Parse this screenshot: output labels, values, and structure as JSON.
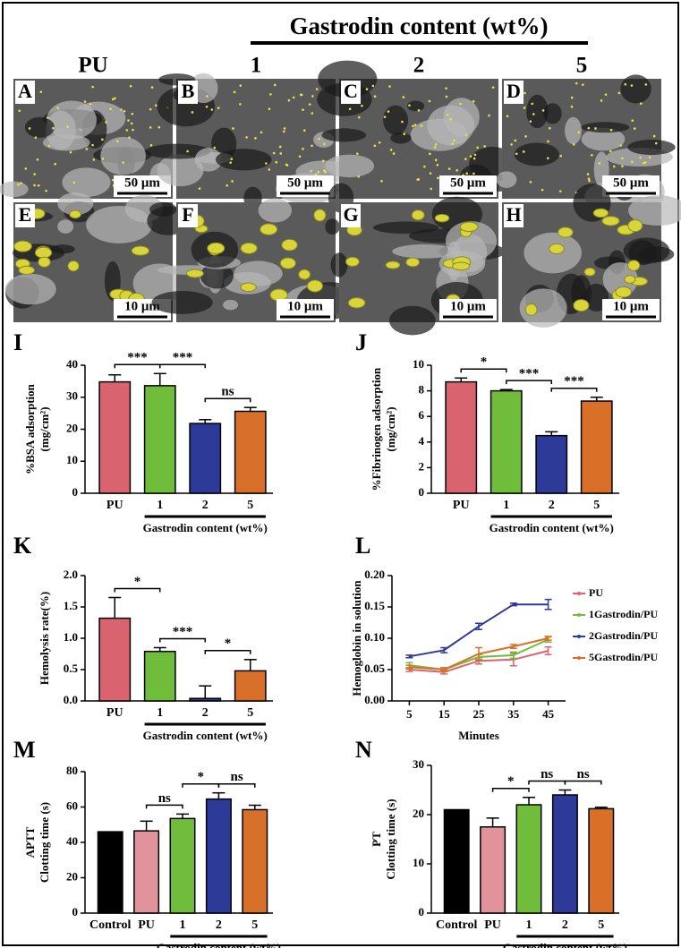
{
  "header": {
    "title": "Gastrodin content (wt%)",
    "columns": [
      "PU",
      "1",
      "2",
      "5"
    ]
  },
  "panels": [
    {
      "label": "A",
      "scale": "50 μm"
    },
    {
      "label": "B",
      "scale": "50 μm"
    },
    {
      "label": "C",
      "scale": "50 μm"
    },
    {
      "label": "D",
      "scale": "50 μm"
    },
    {
      "label": "E",
      "scale": "10 μm"
    },
    {
      "label": "F",
      "scale": "10 μm"
    },
    {
      "label": "G",
      "scale": "10 μm"
    },
    {
      "label": "H",
      "scale": "10 μm"
    }
  ],
  "chart_data": [
    {
      "type": "bar",
      "label": "I",
      "ylabel": [
        "%BSA adsorption",
        "(mg/cm²)"
      ],
      "group_label": "Gastrodin content (wt%)",
      "categories": [
        "PU",
        "1",
        "2",
        "5"
      ],
      "values": [
        34.8,
        33.6,
        21.8,
        25.6
      ],
      "errors": [
        2.2,
        3.8,
        1.2,
        1.2
      ],
      "colors": [
        "#d9646f",
        "#6fbd3a",
        "#2e3a98",
        "#d9702a"
      ],
      "ylim": [
        0,
        40
      ],
      "yticks": [
        0,
        10,
        20,
        30,
        40
      ],
      "brackets": [
        {
          "between": [
            0,
            1
          ],
          "label": "***"
        },
        {
          "between": [
            1,
            2
          ],
          "label": "***"
        },
        {
          "between": [
            2,
            3
          ],
          "label": "ns"
        }
      ]
    },
    {
      "type": "bar",
      "label": "J",
      "ylabel": [
        "%Fibrinogen adsorption",
        "(mg/cm²)"
      ],
      "group_label": "Gastrodin content (wt%)",
      "categories": [
        "PU",
        "1",
        "2",
        "5"
      ],
      "values": [
        8.7,
        8.0,
        4.5,
        7.2
      ],
      "errors": [
        0.3,
        0.1,
        0.3,
        0.3
      ],
      "colors": [
        "#d9646f",
        "#6fbd3a",
        "#2e3a98",
        "#d9702a"
      ],
      "ylim": [
        0,
        10
      ],
      "yticks": [
        0,
        2,
        4,
        6,
        8,
        10
      ],
      "brackets": [
        {
          "between": [
            0,
            1
          ],
          "label": "*"
        },
        {
          "between": [
            1,
            2
          ],
          "label": "***"
        },
        {
          "between": [
            2,
            3
          ],
          "label": "***"
        }
      ]
    },
    {
      "type": "bar",
      "label": "K",
      "ylabel": [
        "Hemolysis rate(%)"
      ],
      "group_label": "Gastrodin content (wt%)",
      "categories": [
        "PU",
        "1",
        "2",
        "5"
      ],
      "values": [
        1.32,
        0.79,
        0.04,
        0.48
      ],
      "errors": [
        0.33,
        0.06,
        0.2,
        0.18
      ],
      "colors": [
        "#d9646f",
        "#6fbd3a",
        "#2e3a98",
        "#d9702a"
      ],
      "ylim": [
        0,
        2
      ],
      "yticks": [
        {
          "value": 0,
          "label": "0.0"
        },
        {
          "value": 0.5,
          "label": "0.5"
        },
        {
          "value": 1,
          "label": "1.0"
        },
        {
          "value": 1.5,
          "label": "1.5"
        },
        {
          "value": 2,
          "label": "2.0"
        }
      ],
      "brackets": [
        {
          "between": [
            0,
            1
          ],
          "label": "*"
        },
        {
          "between": [
            1,
            2
          ],
          "label": "***"
        },
        {
          "between": [
            2,
            3
          ],
          "label": "*"
        }
      ]
    },
    {
      "type": "line",
      "label": "L",
      "ylabel": [
        "Hemoglobin in solution"
      ],
      "xlabel": "Minutes",
      "legend": "right",
      "x": [
        5,
        15,
        25,
        35,
        45
      ],
      "xlim": [
        0,
        50
      ],
      "xticks": [
        5,
        15,
        25,
        35,
        45
      ],
      "ylim": [
        0,
        0.2
      ],
      "yticks": [
        {
          "value": 0,
          "label": "0.00"
        },
        {
          "value": 0.05,
          "label": "0.05"
        },
        {
          "value": 0.1,
          "label": "0.10"
        },
        {
          "value": 0.15,
          "label": "0.15"
        },
        {
          "value": 0.2,
          "label": "0.20"
        }
      ],
      "series": [
        {
          "name": "PU",
          "color": "#d9646f",
          "values": [
            0.05,
            0.046,
            0.064,
            0.066,
            0.08
          ],
          "errors": [
            0.003,
            0.003,
            0.005,
            0.01,
            0.006
          ]
        },
        {
          "name": "1Gastrodin/PU",
          "color": "#6fbd3a",
          "values": [
            0.057,
            0.05,
            0.07,
            0.073,
            0.098
          ],
          "errors": [
            0.004,
            0.003,
            0.004,
            0.005,
            0.004
          ]
        },
        {
          "name": "2Gastrodin/PU",
          "color": "#2e3a98",
          "values": [
            0.071,
            0.081,
            0.119,
            0.154,
            0.154
          ],
          "errors": [
            0.002,
            0.004,
            0.005,
            0.002,
            0.008
          ]
        },
        {
          "name": "5Gastrodin/PU",
          "color": "#d9702a",
          "values": [
            0.054,
            0.05,
            0.075,
            0.087,
            0.1
          ],
          "errors": [
            0.003,
            0.003,
            0.01,
            0.003,
            0.003
          ]
        }
      ]
    },
    {
      "type": "bar",
      "label": "M",
      "ylabel": [
        "APTT",
        "Clotting time (s)"
      ],
      "group_label": "Gastrodin content (wt%)",
      "categories": [
        "Control",
        "PU",
        "1",
        "2",
        "5"
      ],
      "values": [
        46,
        46.5,
        53.5,
        64.5,
        58.5
      ],
      "errors": [
        0,
        5.5,
        2.5,
        3.5,
        2.5
      ],
      "colors": [
        "#000000",
        "#e0939a",
        "#6fbd3a",
        "#2e3a98",
        "#d9702a"
      ],
      "ylim": [
        0,
        80
      ],
      "yticks": [
        0,
        20,
        40,
        60,
        80
      ],
      "brackets": [
        {
          "between": [
            1,
            2
          ],
          "label": "ns"
        },
        {
          "between": [
            2,
            3
          ],
          "label": "*"
        },
        {
          "between": [
            3,
            4
          ],
          "label": "ns"
        }
      ]
    },
    {
      "type": "bar",
      "label": "N",
      "ylabel": [
        "PT",
        "Clotting time (s)"
      ],
      "group_label": "Gastrodin content (wt%)",
      "categories": [
        "Control",
        "PU",
        "1",
        "2",
        "5"
      ],
      "values": [
        21,
        17.5,
        22,
        24,
        21.2
      ],
      "errors": [
        0,
        1.8,
        1.5,
        1,
        0.3
      ],
      "colors": [
        "#000000",
        "#e0939a",
        "#6fbd3a",
        "#2e3a98",
        "#d9702a"
      ],
      "ylim": [
        0,
        30
      ],
      "yticks": [
        0,
        10,
        20,
        30
      ],
      "brackets": [
        {
          "between": [
            1,
            2
          ],
          "label": "*"
        },
        {
          "between": [
            2,
            3
          ],
          "label": "ns"
        },
        {
          "between": [
            3,
            4
          ],
          "label": "ns"
        }
      ]
    }
  ]
}
